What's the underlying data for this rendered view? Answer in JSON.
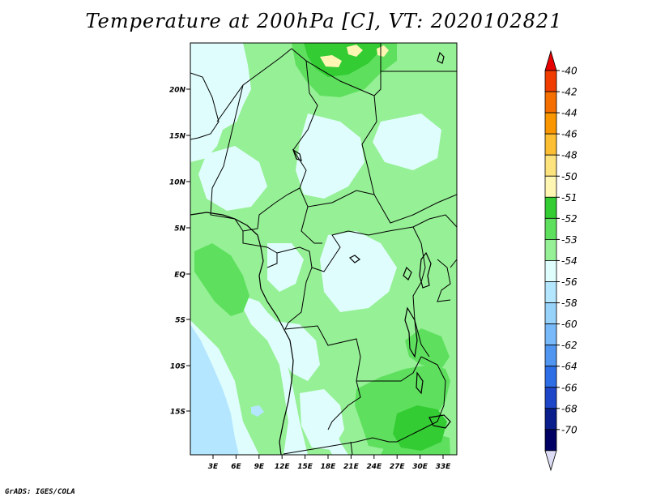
{
  "title": "Temperature at 200hPa [C], VT: 2020102821",
  "credit": "GrADS: IGES/COLA",
  "map": {
    "lat_labels": [
      "20N",
      "15N",
      "10N",
      "5N",
      "EQ",
      "5S",
      "10S",
      "15S"
    ],
    "lon_labels": [
      "3E",
      "6E",
      "9E",
      "12E",
      "15E",
      "18E",
      "21E",
      "24E",
      "27E",
      "30E",
      "33E"
    ]
  },
  "colorbar": {
    "labels": [
      "-40",
      "-42",
      "-44",
      "-46",
      "-48",
      "-50",
      "-51",
      "-52",
      "-53",
      "-54",
      "-56",
      "-58",
      "-60",
      "-62",
      "-64",
      "-66",
      "-68",
      "-70"
    ],
    "colors": [
      "#e60000",
      "#f03c00",
      "#f56e00",
      "#fa9600",
      "#fcbe32",
      "#fde37d",
      "#fff6b4",
      "#33cc33",
      "#5ee05e",
      "#96f096",
      "#e0fdfd",
      "#b4e6ff",
      "#96d2fa",
      "#78b9fa",
      "#5096f0",
      "#2d6ee6",
      "#1e46c8",
      "#0a1e8c",
      "#000064",
      "#dcdcf5"
    ]
  }
}
